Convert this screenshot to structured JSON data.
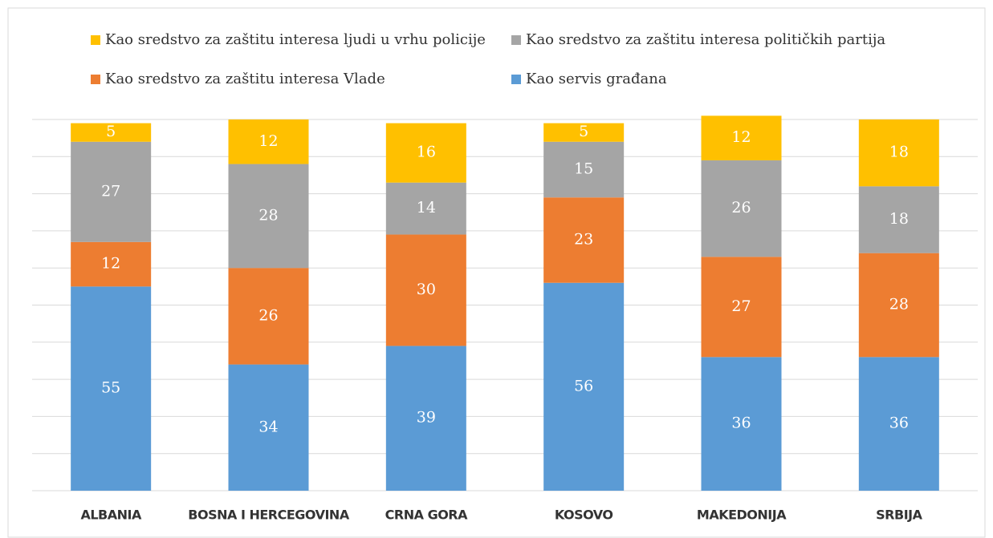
{
  "chart_data": {
    "type": "stacked_bar",
    "categories": [
      "ALBANIA",
      "BOSNA I HERCEGOVINA",
      "CRNA GORA",
      "KOSOVO",
      "MAKEDONIJA",
      "SRBIJA"
    ],
    "series": [
      {
        "name": "Kao servis građana",
        "color": "#5b9bd5",
        "values": [
          55,
          34,
          39,
          56,
          36,
          36
        ]
      },
      {
        "name": "Kao sredstvo za zaštitu interesa Vlade",
        "color": "#ed7d31",
        "values": [
          12,
          26,
          30,
          23,
          27,
          28
        ]
      },
      {
        "name": "Kao sredstvo za zaštitu interesa političkih partija",
        "color": "#a5a5a5",
        "values": [
          27,
          28,
          14,
          15,
          26,
          18
        ]
      },
      {
        "name": "Kao sredstvo za zaštitu interesa ljudi u vrhu policije",
        "color": "#ffc000",
        "values": [
          5,
          12,
          16,
          5,
          12,
          18
        ]
      }
    ],
    "ylim": [
      0,
      100
    ],
    "yticks": [
      0,
      10,
      20,
      30,
      40,
      50,
      60,
      70,
      80,
      90,
      100
    ],
    "grid": true
  }
}
